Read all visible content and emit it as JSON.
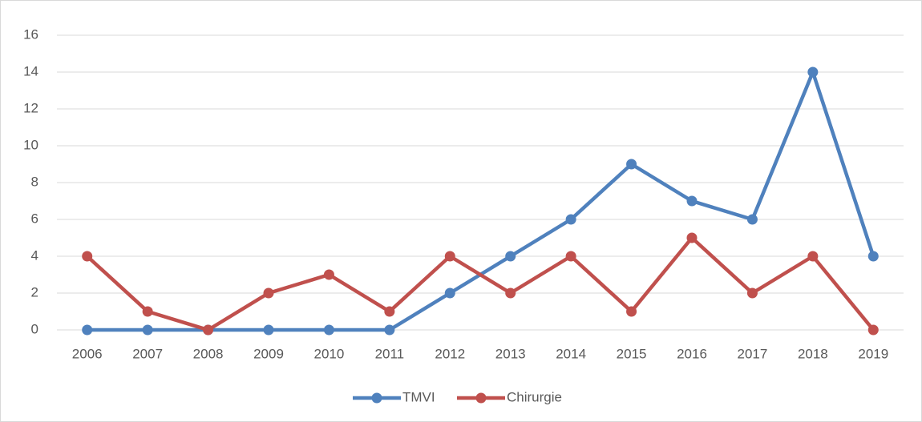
{
  "chart_data": {
    "type": "line",
    "categories": [
      "2006",
      "2007",
      "2008",
      "2009",
      "2010",
      "2011",
      "2012",
      "2013",
      "2014",
      "2015",
      "2016",
      "2017",
      "2018",
      "2019"
    ],
    "series": [
      {
        "name": "TMVI",
        "color": "#4f81bd",
        "values": [
          0,
          0,
          0,
          0,
          0,
          0,
          2,
          4,
          6,
          9,
          7,
          6,
          14,
          4
        ]
      },
      {
        "name": "Chirurgie",
        "color": "#c0504d",
        "values": [
          4,
          1,
          0,
          2,
          3,
          1,
          4,
          2,
          4,
          1,
          5,
          2,
          4,
          0
        ]
      }
    ],
    "ylim": [
      0,
      16
    ],
    "yticks": [
      0,
      2,
      4,
      6,
      8,
      10,
      12,
      14,
      16
    ],
    "grid": true,
    "legend": "bottom"
  }
}
